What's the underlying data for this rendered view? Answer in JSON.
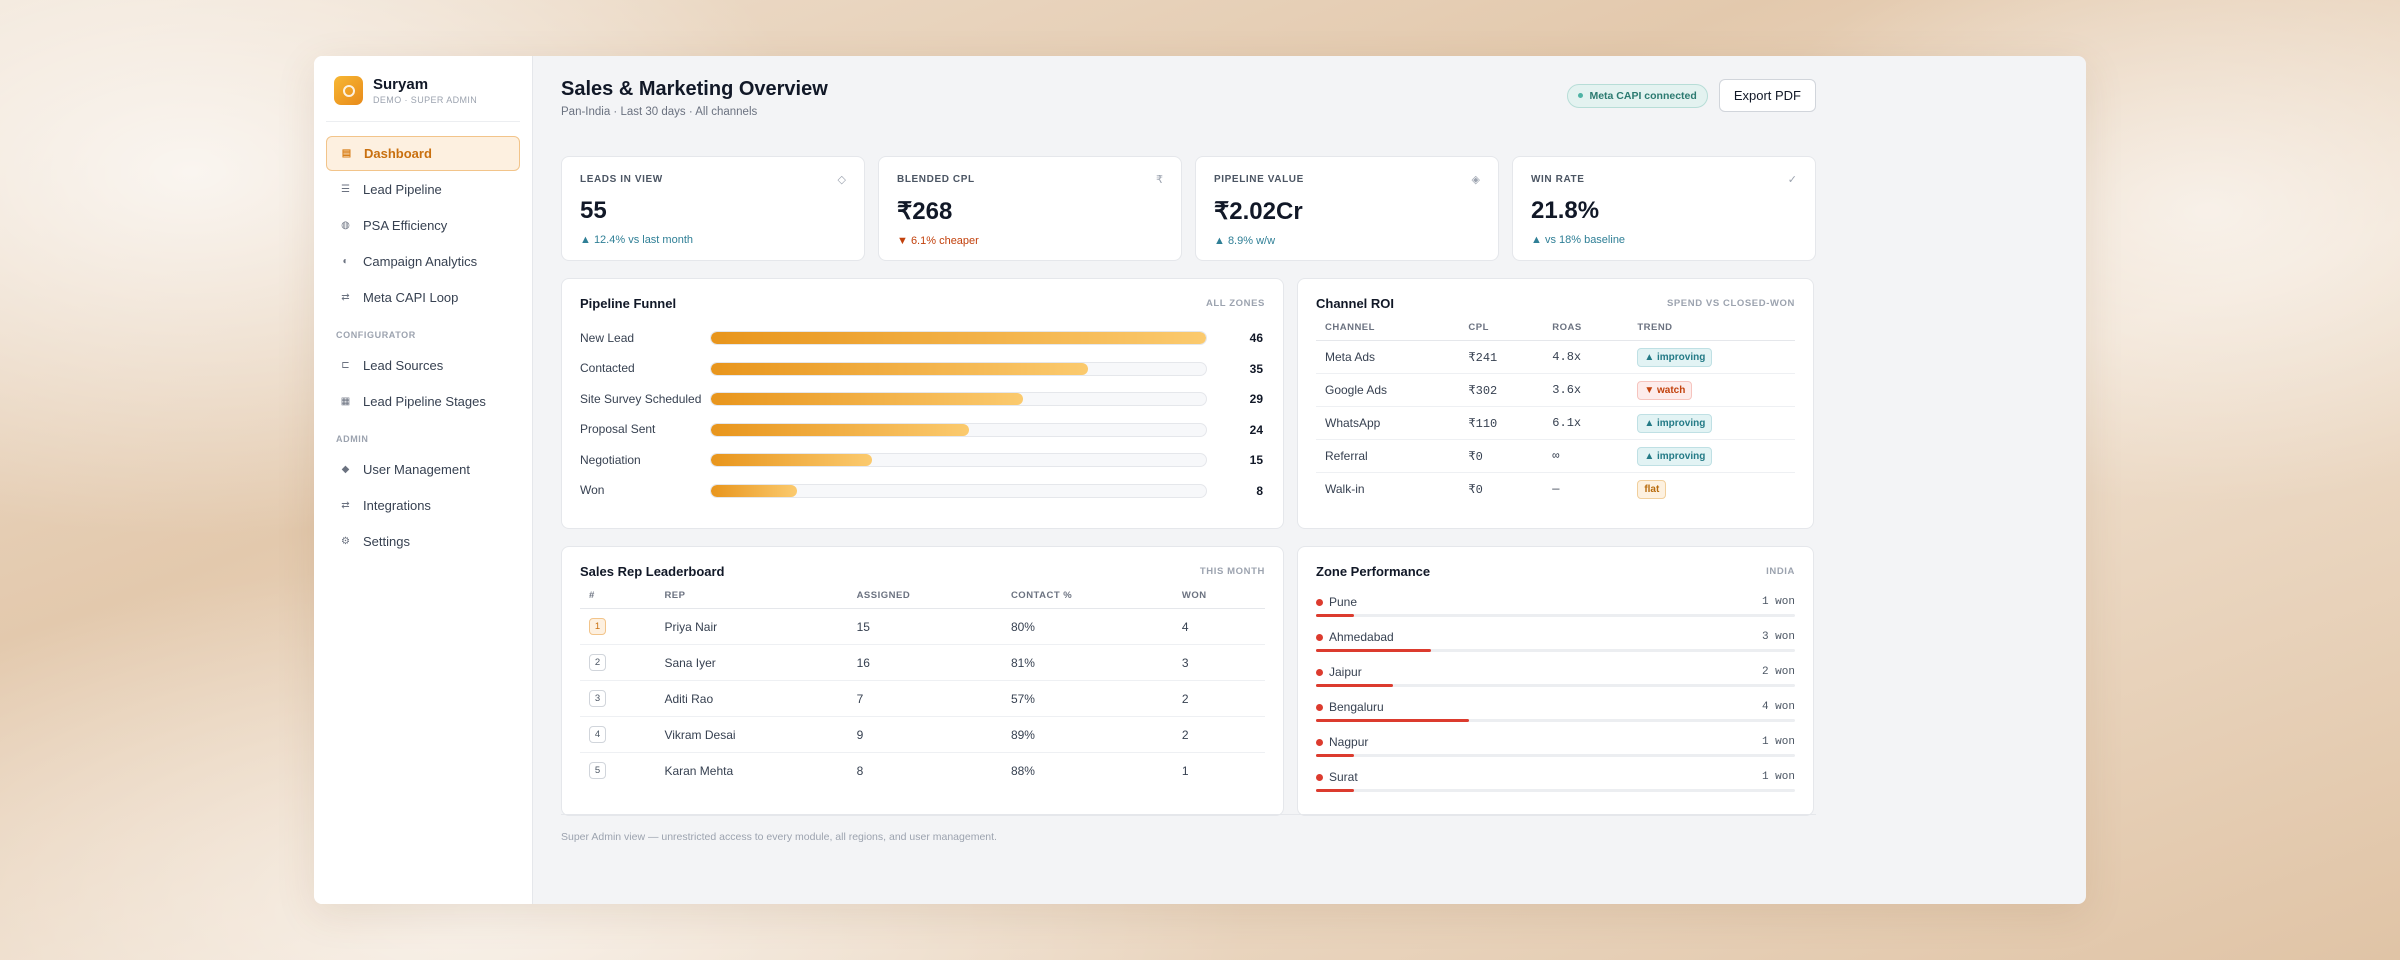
{
  "brand": {
    "name": "Suryam",
    "subtitle": "DEMO · SUPER ADMIN"
  },
  "sidebar": {
    "main_items": [
      {
        "label": "Dashboard",
        "icon": "dashboard-icon"
      },
      {
        "label": "Lead Pipeline",
        "icon": "pipeline-icon"
      },
      {
        "label": "PSA Efficiency",
        "icon": "efficiency-icon"
      },
      {
        "label": "Campaign Analytics",
        "icon": "analytics-icon"
      },
      {
        "label": "Meta CAPI Loop",
        "icon": "loop-icon"
      }
    ],
    "configurator_title": "CONFIGURATOR",
    "configurator_items": [
      {
        "label": "Lead Sources",
        "icon": "tag-icon"
      },
      {
        "label": "Lead Pipeline Stages",
        "icon": "stages-icon"
      }
    ],
    "admin_title": "ADMIN",
    "admin_items": [
      {
        "label": "User Management",
        "icon": "users-icon"
      },
      {
        "label": "Integrations",
        "icon": "integrations-icon"
      },
      {
        "label": "Settings",
        "icon": "gear-icon"
      }
    ]
  },
  "header": {
    "title": "Sales & Marketing Overview",
    "subtitle": "Pan-India · Last 30 days · All channels",
    "capi_badge": "Meta CAPI connected",
    "export_label": "Export PDF"
  },
  "kpis": [
    {
      "label": "LEADS IN VIEW",
      "icon": "◇",
      "value": "55",
      "delta": "▲ 12.4% vs last month",
      "direction": "up"
    },
    {
      "label": "BLENDED CPL",
      "icon": "₹",
      "value": "₹268",
      "delta": "▼ 6.1% cheaper",
      "direction": "down"
    },
    {
      "label": "PIPELINE VALUE",
      "icon": "◈",
      "value": "₹2.02Cr",
      "delta": "▲ 8.9% w/w",
      "direction": "up"
    },
    {
      "label": "WIN RATE",
      "icon": "✓",
      "value": "21.8%",
      "delta": "▲ vs 18% baseline",
      "direction": "up"
    }
  ],
  "funnel": {
    "title": "Pipeline Funnel",
    "meta": "ALL ZONES",
    "max": 46,
    "stages": [
      {
        "label": "New Lead",
        "value": 46
      },
      {
        "label": "Contacted",
        "value": 35
      },
      {
        "label": "Site Survey Scheduled",
        "value": 29
      },
      {
        "label": "Proposal Sent",
        "value": 24
      },
      {
        "label": "Negotiation",
        "value": 15
      },
      {
        "label": "Won",
        "value": 8
      }
    ]
  },
  "roi": {
    "title": "Channel ROI",
    "meta": "SPEND VS CLOSED-WON",
    "headers": [
      "CHANNEL",
      "CPL",
      "ROAS",
      "TREND"
    ],
    "rows": [
      {
        "channel": "Meta Ads",
        "cpl": "₹241",
        "roas": "4.8x",
        "trend": "▲ improving",
        "trend_class": "improving"
      },
      {
        "channel": "Google Ads",
        "cpl": "₹302",
        "roas": "3.6x",
        "trend": "▼ watch",
        "trend_class": "watch"
      },
      {
        "channel": "WhatsApp",
        "cpl": "₹110",
        "roas": "6.1x",
        "trend": "▲ improving",
        "trend_class": "improving"
      },
      {
        "channel": "Referral",
        "cpl": "₹0",
        "roas": "∞",
        "trend": "▲ improving",
        "trend_class": "improving"
      },
      {
        "channel": "Walk-in",
        "cpl": "₹0",
        "roas": "—",
        "trend": "flat",
        "trend_class": "flat"
      }
    ]
  },
  "leaderboard": {
    "title": "Sales Rep Leaderboard",
    "meta": "THIS MONTH",
    "headers": [
      "#",
      "REP",
      "ASSIGNED",
      "CONTACT %",
      "WON"
    ],
    "rows": [
      {
        "rank": "1",
        "rep": "Priya Nair",
        "assigned": "15",
        "contact": "80%",
        "won": "4"
      },
      {
        "rank": "2",
        "rep": "Sana Iyer",
        "assigned": "16",
        "contact": "81%",
        "won": "3"
      },
      {
        "rank": "3",
        "rep": "Aditi Rao",
        "assigned": "7",
        "contact": "57%",
        "won": "2"
      },
      {
        "rank": "4",
        "rep": "Vikram Desai",
        "assigned": "9",
        "contact": "89%",
        "won": "2"
      },
      {
        "rank": "5",
        "rep": "Karan Mehta",
        "assigned": "8",
        "contact": "88%",
        "won": "1"
      }
    ]
  },
  "zones": {
    "title": "Zone Performance",
    "meta": "INDIA",
    "items": [
      {
        "name": "Pune",
        "won": "1 won",
        "level": 0.08
      },
      {
        "name": "Ahmedabad",
        "won": "3 won",
        "level": 0.24
      },
      {
        "name": "Jaipur",
        "won": "2 won",
        "level": 0.16
      },
      {
        "name": "Bengaluru",
        "won": "4 won",
        "level": 0.32
      },
      {
        "name": "Nagpur",
        "won": "1 won",
        "level": 0.08
      },
      {
        "name": "Surat",
        "won": "1 won",
        "level": 0.08
      }
    ]
  },
  "footer": "Super Admin view — unrestricted access to every module, all regions, and user management."
}
